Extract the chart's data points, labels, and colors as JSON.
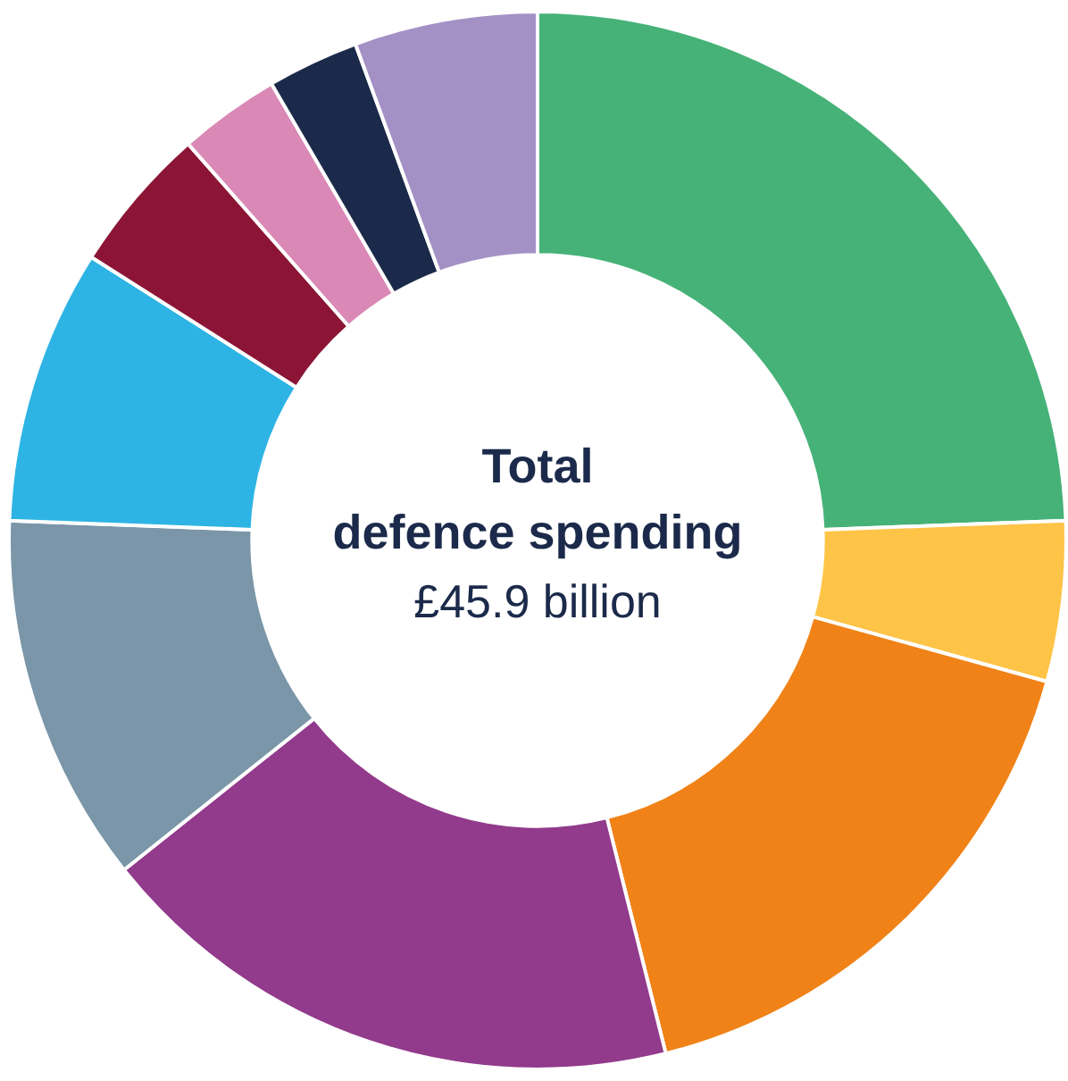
{
  "chart_data": {
    "type": "donut",
    "title": "Total defence spending",
    "subtitle": "£45.9 billion",
    "categories": [
      null,
      null,
      null,
      null,
      null,
      null,
      null,
      null,
      null,
      null
    ],
    "values": [
      24.4,
      4.9,
      16.8,
      18.2,
      11.3,
      8.4,
      4.5,
      3.1,
      2.8,
      5.6
    ],
    "colors": [
      "#46b278",
      "#fec448",
      "#f08217",
      "#923a8c",
      "#7a96a8",
      "#2eb4e4",
      "#8c1535",
      "#da88b6",
      "#1b2a4a",
      "#a391c5"
    ],
    "legend": false
  }
}
